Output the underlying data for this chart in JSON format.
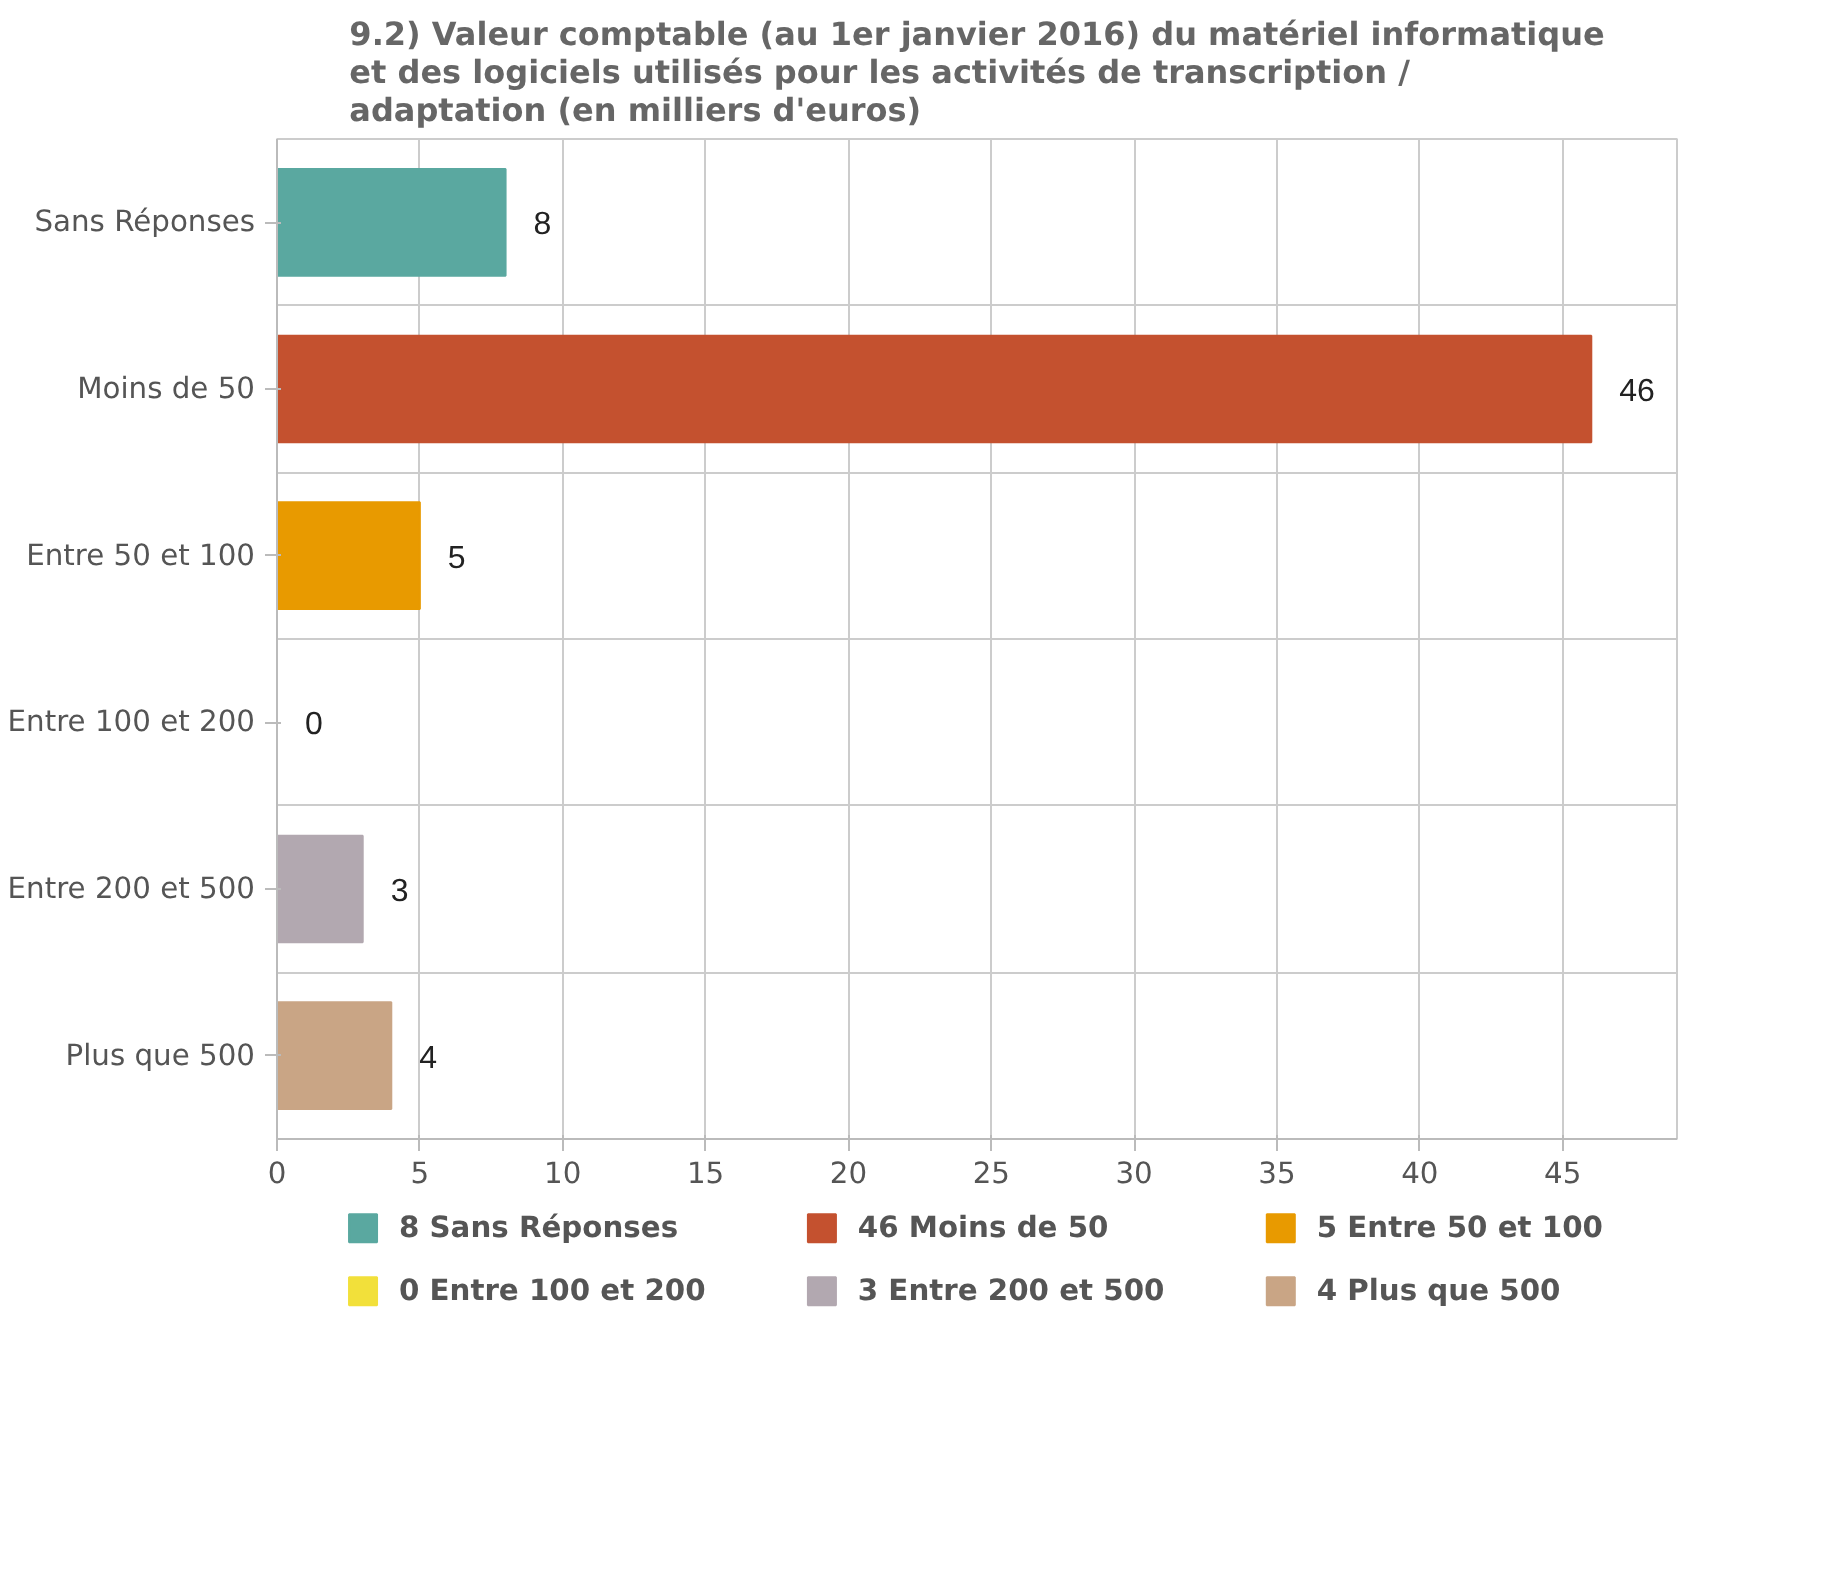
{
  "chart_data": {
    "type": "bar",
    "orientation": "horizontal",
    "title": "9.2) Valeur comptable (au 1er janvier 2016) du matériel informatique\net des logiciels utilisés pour les activités de transcription /\nadaptation (en milliers d'euros)",
    "categories": [
      "Sans Réponses",
      "Moins de 50",
      "Entre 50 et 100",
      "Entre 100 et 200",
      "Entre 200 et 500",
      "Plus que 500"
    ],
    "series": [
      {
        "name": "8 Sans Réponses",
        "color": "#5aa8a0",
        "values": [
          8,
          null,
          null,
          null,
          null,
          null
        ]
      },
      {
        "name": "46 Moins de 50",
        "color": "#c4512f",
        "values": [
          null,
          46,
          null,
          null,
          null,
          null
        ]
      },
      {
        "name": "5 Entre 50 et 100",
        "color": "#e89a00",
        "values": [
          null,
          null,
          5,
          null,
          null,
          null
        ]
      },
      {
        "name": "0 Entre 100 et 200",
        "color": "#f2e03a",
        "values": [
          null,
          null,
          null,
          0,
          null,
          null
        ]
      },
      {
        "name": "3 Entre 200 et 500",
        "color": "#b2a8b0",
        "values": [
          null,
          null,
          null,
          null,
          3,
          null
        ]
      },
      {
        "name": "4 Plus que 500",
        "color": "#c9a585",
        "values": [
          null,
          null,
          null,
          null,
          null,
          4
        ]
      }
    ],
    "xlim": [
      0,
      49
    ],
    "xticks": [
      0,
      5,
      10,
      15,
      20,
      25,
      30,
      35,
      40,
      45
    ],
    "data_labels": true,
    "grid": true,
    "legend": "bottom"
  }
}
